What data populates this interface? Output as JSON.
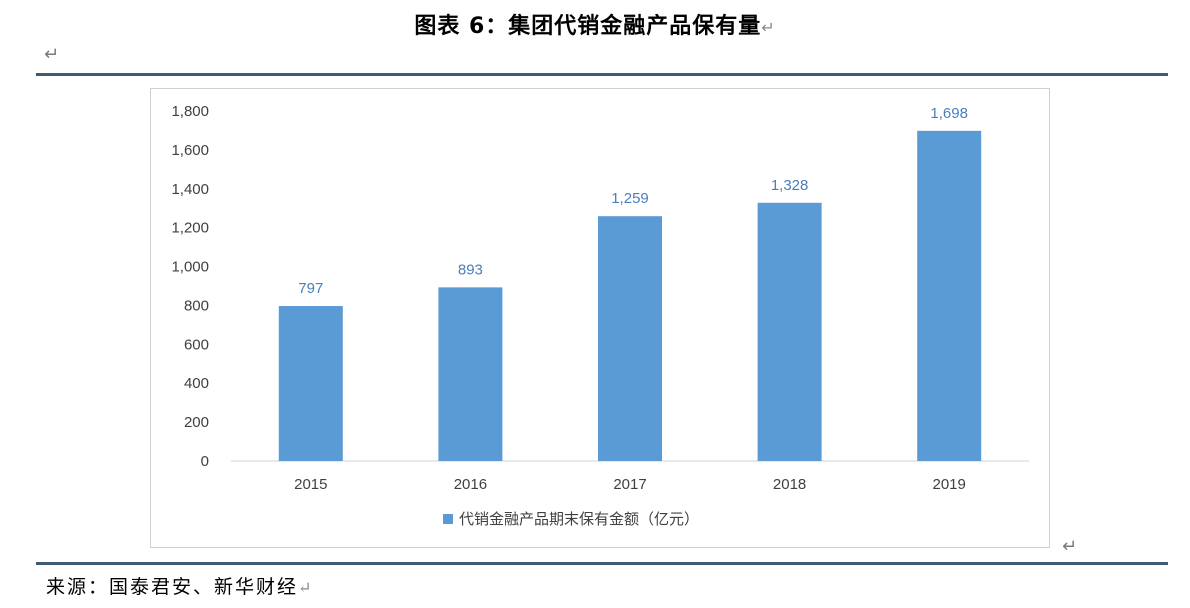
{
  "title": "图表 6：集团代销金融产品保有量",
  "return_symbol": "↵",
  "source": "来源：国泰君安、新华财经",
  "colors": {
    "bar": "#5b9bd5",
    "label": "#4a7ebb",
    "rule": "#3f5a73",
    "axis_text": "#404040"
  },
  "chart_data": {
    "type": "bar",
    "categories": [
      "2015",
      "2016",
      "2017",
      "2018",
      "2019"
    ],
    "series": [
      {
        "name": "代销金融产品期末保有金额（亿元）",
        "values": [
          797,
          893,
          1259,
          1328,
          1698
        ]
      }
    ],
    "data_labels": [
      "797",
      "893",
      "1,259",
      "1,328",
      "1,698"
    ],
    "yticks": [
      "0",
      "200",
      "400",
      "600",
      "800",
      "1,000",
      "1,200",
      "1,400",
      "1,600",
      "1,800"
    ],
    "ylim": [
      0,
      1800
    ],
    "grid": false,
    "legend": "bottom"
  }
}
